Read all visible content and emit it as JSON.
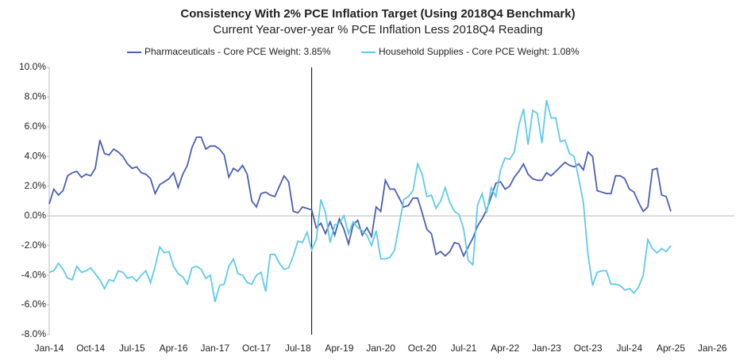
{
  "chart_data": {
    "type": "line",
    "title": "Consistency With 2% PCE Inflation Target (Using 2018Q4 Benchmark)",
    "subtitle": "Current Year-over-year % PCE Inflation Less 2018Q4 Reading",
    "categories": [
      "Jan-14",
      null,
      null,
      null,
      null,
      null,
      null,
      null,
      null,
      "Oct-14",
      null,
      null,
      null,
      null,
      null,
      null,
      null,
      null,
      "Jul-15",
      null,
      null,
      null,
      null,
      null,
      null,
      null,
      null,
      "Apr-16",
      null,
      null,
      null,
      null,
      null,
      null,
      null,
      null,
      "Jan-17",
      null,
      null,
      null,
      null,
      null,
      null,
      null,
      null,
      "Oct-17",
      null,
      null,
      null,
      null,
      null,
      null,
      null,
      null,
      "Jul-18",
      null,
      null,
      null,
      null,
      null,
      null,
      null,
      null,
      "Apr-19",
      null,
      null,
      null,
      null,
      null,
      null,
      null,
      null,
      "Jan-20",
      null,
      null,
      null,
      null,
      null,
      null,
      null,
      null,
      "Oct-20",
      null,
      null,
      null,
      null,
      null,
      null,
      null,
      null,
      "Jul-21",
      null,
      null,
      null,
      null,
      null,
      null,
      null,
      null,
      "Apr-22",
      null,
      null,
      null,
      null,
      null,
      null,
      null,
      null,
      "Jan-23",
      null,
      null,
      null,
      null,
      null,
      null,
      null,
      null,
      "Oct-23",
      null,
      null,
      null,
      null,
      null,
      null,
      null,
      null,
      "Jul-24",
      null,
      null,
      null,
      null,
      null,
      null,
      null,
      null,
      "Apr-25",
      null,
      null,
      null,
      null,
      null,
      null,
      null,
      null,
      "Jan-26",
      null,
      null,
      null,
      null
    ],
    "series": [
      {
        "name": "Pharmaceuticals - Core PCE Weight: 3.85%",
        "color": "#4a5fb5",
        "values": [
          0.8,
          1.8,
          1.4,
          1.7,
          2.7,
          2.9,
          3.0,
          2.6,
          2.8,
          2.7,
          3.2,
          5.1,
          4.2,
          4.1,
          4.5,
          4.3,
          4.0,
          3.5,
          3.2,
          3.3,
          2.9,
          2.8,
          2.5,
          1.5,
          2.1,
          2.3,
          2.5,
          2.9,
          1.9,
          2.8,
          3.4,
          4.6,
          5.3,
          5.3,
          4.5,
          4.7,
          4.7,
          4.5,
          4.1,
          2.6,
          3.2,
          3.0,
          3.4,
          2.8,
          1.0,
          0.6,
          1.5,
          1.6,
          1.4,
          1.3,
          2.0,
          2.7,
          2.3,
          0.3,
          0.2,
          0.6,
          0.5,
          0.4,
          -0.8,
          -0.5,
          -1.2,
          -0.4,
          -1.3,
          -0.2,
          -0.9,
          -1.9,
          -0.6,
          -0.3,
          -1.3,
          -0.8,
          -1.4,
          0.6,
          0.3,
          2.4,
          1.8,
          1.8,
          1.2,
          0.6,
          0.7,
          1.2,
          1.2,
          0.2,
          -0.9,
          -1.2,
          -2.6,
          -2.4,
          -2.7,
          -2.4,
          -1.8,
          -1.9,
          -2.7,
          -2.1,
          -1.5,
          -0.7,
          -0.2,
          0.4,
          1.3,
          2.2,
          2.3,
          1.8,
          2.0,
          2.6,
          3.0,
          3.5,
          2.8,
          2.5,
          2.4,
          2.4,
          2.9,
          2.7,
          3.0,
          3.3,
          3.6,
          3.4,
          3.3,
          3.5,
          3.1,
          4.3,
          4.0,
          1.7,
          1.6,
          1.5,
          1.5,
          2.7,
          2.7,
          2.5,
          1.8,
          1.6,
          0.9,
          0.3,
          0.6,
          3.1,
          3.2,
          1.4,
          1.3,
          0.3,
          null,
          null,
          null,
          null,
          null,
          null,
          null,
          null,
          null,
          null,
          null,
          null,
          null
        ]
      },
      {
        "name": "Household Supplies - Core PCE Weight: 1.08%",
        "color": "#5ccbec",
        "values": [
          -3.8,
          -3.7,
          -3.2,
          -3.6,
          -4.2,
          -4.3,
          -3.4,
          -3.8,
          -3.7,
          -3.5,
          -3.9,
          -4.3,
          -4.9,
          -4.3,
          -4.4,
          -3.7,
          -3.8,
          -4.2,
          -4.1,
          -4.4,
          -4.0,
          -3.7,
          -4.5,
          -3.4,
          -2.1,
          -2.5,
          -2.4,
          -3.4,
          -3.9,
          -4.1,
          -4.6,
          -3.5,
          -3.4,
          -3.6,
          -4.2,
          -4.0,
          -5.8,
          -4.7,
          -4.6,
          -3.4,
          -2.9,
          -3.9,
          -4.0,
          -4.5,
          -4.6,
          -4.0,
          -3.8,
          -5.1,
          -2.6,
          -2.6,
          -3.2,
          -3.6,
          -3.5,
          -2.7,
          -1.7,
          -1.8,
          -1.1,
          -2.3,
          -1.6,
          1.1,
          0.2,
          -1.8,
          -0.6,
          -0.5,
          0.0,
          -1.2,
          -0.4,
          -0.8,
          -1.0,
          -1.3,
          -2.0,
          -1.0,
          -2.9,
          -2.9,
          -2.8,
          -2.3,
          -0.6,
          1.1,
          1.3,
          1.7,
          3.5,
          2.8,
          1.3,
          1.4,
          0.5,
          1.0,
          1.9,
          0.9,
          0.3,
          0.1,
          -0.9,
          -3.0,
          -3.3,
          0.7,
          1.5,
          0.2,
          1.9,
          1.3,
          3.1,
          3.9,
          3.8,
          4.3,
          6.1,
          7.2,
          4.8,
          7.1,
          6.9,
          4.9,
          7.8,
          6.6,
          6.6,
          5.0,
          5.1,
          4.2,
          4.0,
          2.5,
          0.9,
          -2.6,
          -4.7,
          -3.8,
          -3.7,
          -3.7,
          -4.6,
          -4.6,
          -4.7,
          -5.0,
          -4.9,
          -5.2,
          -4.8,
          -4.0,
          -1.6,
          -2.2,
          -2.5,
          -2.2,
          -2.4,
          -2.0,
          null,
          null,
          null,
          null,
          null,
          null,
          null,
          null,
          null,
          null,
          null,
          null,
          null
        ]
      }
    ],
    "ylim": [
      -8,
      10
    ],
    "yticks": [
      {
        "value": -8,
        "label": "-8.0%"
      },
      {
        "value": -6,
        "label": "-6.0%"
      },
      {
        "value": -4,
        "label": "-4.0%"
      },
      {
        "value": -2,
        "label": "-2.0%"
      },
      {
        "value": 0,
        "label": "0.0%"
      },
      {
        "value": 2,
        "label": "2.0%"
      },
      {
        "value": 4,
        "label": "4.0%"
      },
      {
        "value": 6,
        "label": "6.0%"
      },
      {
        "value": 8,
        "label": "8.0%"
      },
      {
        "value": 10,
        "label": "10.0%"
      }
    ],
    "vline_index": 57,
    "legend": "top"
  }
}
